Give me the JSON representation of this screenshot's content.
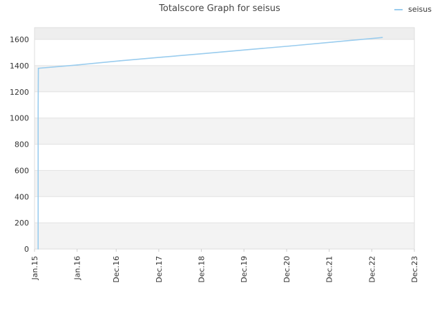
{
  "chart_data": {
    "type": "line",
    "title": "Totalscore Graph for seisus",
    "xlabel": "",
    "ylabel": "",
    "ylim": [
      0,
      1690
    ],
    "yticks": [
      0,
      200,
      400,
      600,
      800,
      1000,
      1200,
      1400,
      1600
    ],
    "xlim": [
      "2015-01-01",
      "2023-12-01"
    ],
    "xticks": [
      {
        "date": "2015-01-01",
        "label": "Jan.15"
      },
      {
        "date": "2016-01-01",
        "label": "Jan.16"
      },
      {
        "date": "2016-12-01",
        "label": "Dec.16"
      },
      {
        "date": "2017-12-01",
        "label": "Dec.17"
      },
      {
        "date": "2018-12-01",
        "label": "Dec.18"
      },
      {
        "date": "2019-12-01",
        "label": "Dec.19"
      },
      {
        "date": "2020-12-01",
        "label": "Dec.20"
      },
      {
        "date": "2021-12-01",
        "label": "Dec.21"
      },
      {
        "date": "2022-12-01",
        "label": "Dec.22"
      },
      {
        "date": "2023-12-01",
        "label": "Dec.23"
      }
    ],
    "grid": true,
    "legend": "top-right",
    "series": [
      {
        "name": "seisus",
        "color": "#99ccee",
        "points": [
          {
            "x": "2015-02-01",
            "y": 0
          },
          {
            "x": "2015-02-01",
            "y": 1080
          },
          {
            "x": "2015-02-03",
            "y": 1380
          },
          {
            "x": "2016-01-01",
            "y": 1405
          },
          {
            "x": "2017-01-01",
            "y": 1437
          },
          {
            "x": "2018-01-01",
            "y": 1465
          },
          {
            "x": "2019-01-01",
            "y": 1493
          },
          {
            "x": "2020-01-01",
            "y": 1522
          },
          {
            "x": "2021-01-01",
            "y": 1550
          },
          {
            "x": "2022-01-01",
            "y": 1580
          },
          {
            "x": "2023-01-01",
            "y": 1610
          },
          {
            "x": "2023-03-01",
            "y": 1615
          }
        ]
      }
    ]
  }
}
